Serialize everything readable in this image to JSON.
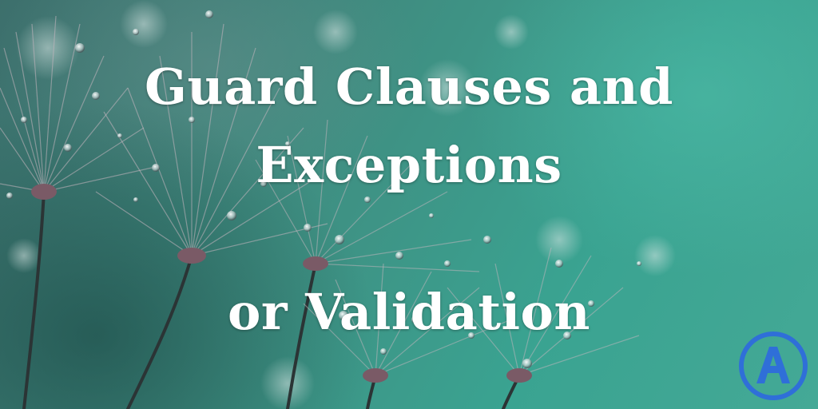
{
  "image": {
    "subject": "dandelion seed heads with water droplets",
    "colors": {
      "background_teal": "#3aa391",
      "background_dark": "#2f5f5c",
      "seed_head": "#b8a6b0",
      "droplet": "#e8f2f0",
      "title_text": "#ffffff",
      "logo_blue": "#2f6fd8"
    }
  },
  "title": {
    "line1": "Guard Clauses and",
    "line2": "Exceptions",
    "line3": "or Validation"
  },
  "logo": {
    "icon": "letter-a-logo-icon",
    "letter": "A"
  }
}
